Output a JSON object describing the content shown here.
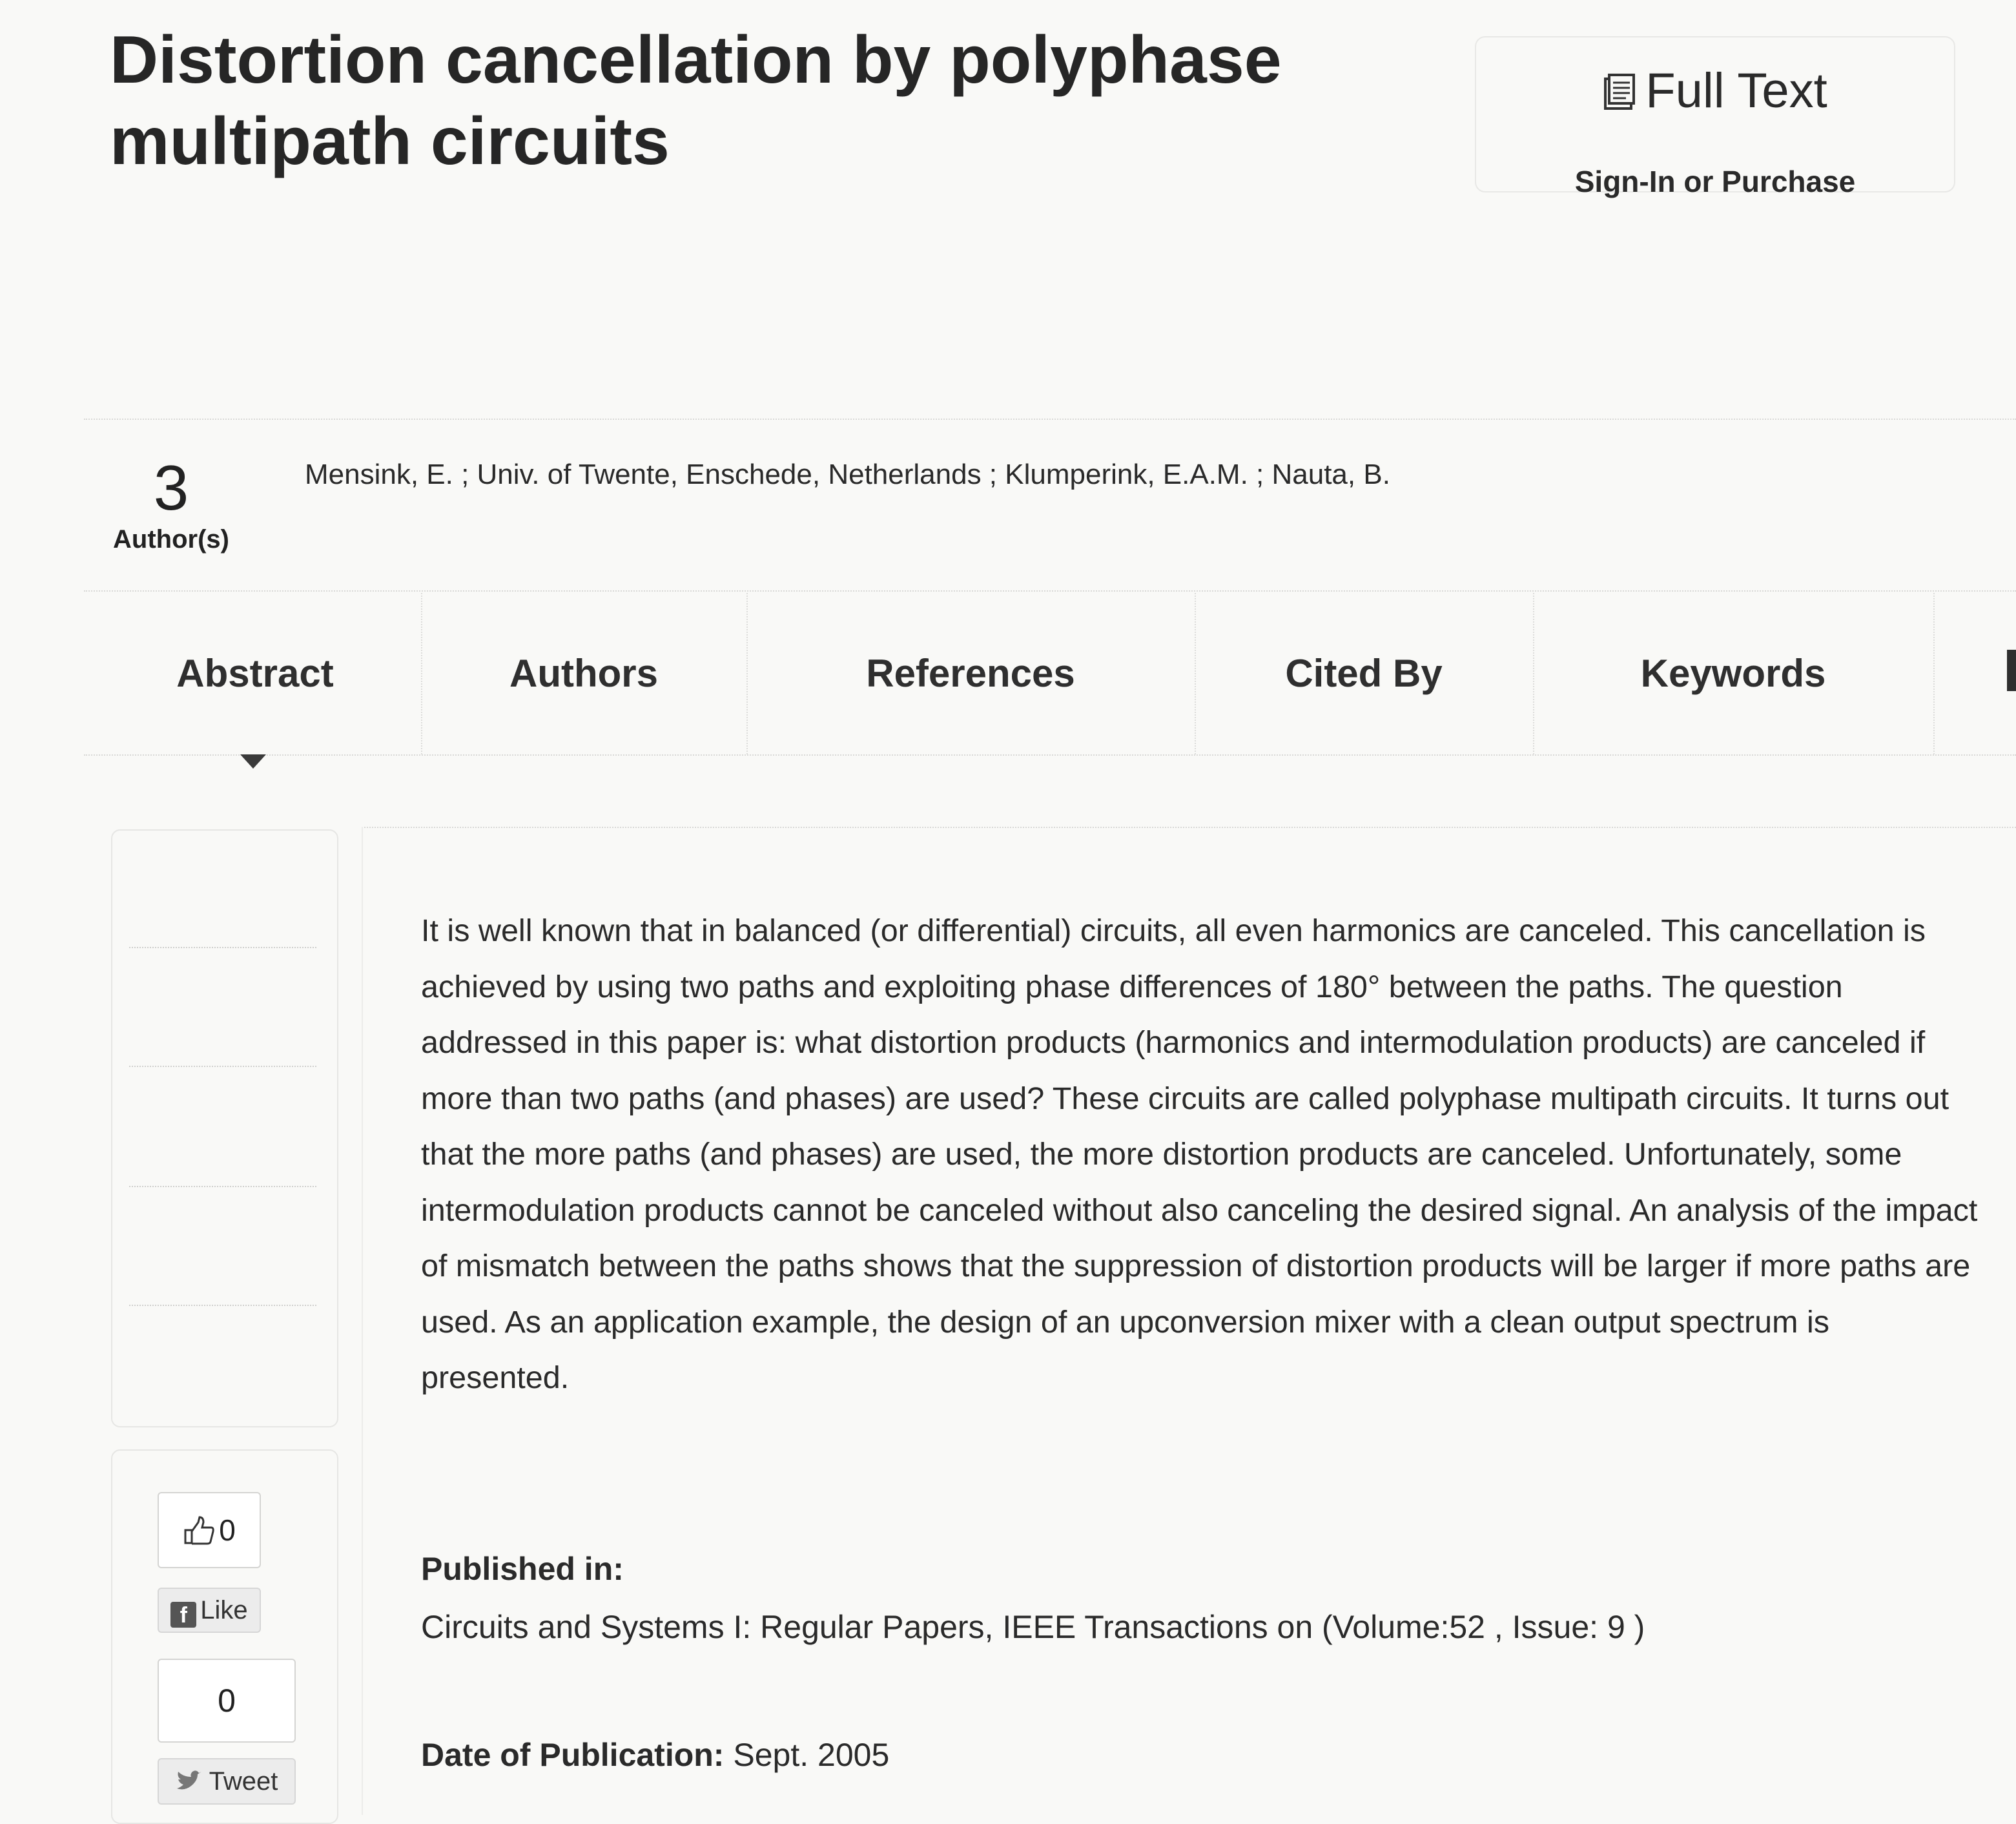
{
  "article": {
    "title": "Distortion cancellation by polyphase multipath circuits"
  },
  "full_text": {
    "label": "Full Text",
    "sub_label": "Sign-In or Purchase",
    "icon": "pdf-document-icon"
  },
  "authors_block": {
    "count": "3",
    "count_label": "Author(s)",
    "list": "Mensink, E. ; Univ. of Twente, Enschede, Netherlands ; Klumperink, E.A.M. ; Nauta, B."
  },
  "tabs": [
    {
      "label": "Abstract",
      "active": true
    },
    {
      "label": "Authors",
      "active": false
    },
    {
      "label": "References",
      "active": false
    },
    {
      "label": "Cited By",
      "active": false
    },
    {
      "label": "Keywords",
      "active": false
    }
  ],
  "abstract": {
    "text": "It is well known that in balanced (or differential) circuits, all even harmonics are canceled. This cancellation is achieved by using two paths and exploiting phase differences of 180° between the paths. The question addressed in this paper is: what distortion products (harmonics and intermodulation products) are canceled if more than two paths (and phases) are used? These circuits are called polyphase multipath circuits. It turns out that the more paths (and phases) are used, the more distortion products are canceled. Unfortunately, some intermodulation products cannot be canceled without also canceling the desired signal. An analysis of the impact of mismatch between the paths shows that the suppression of distortion products will be larger if more paths are used. As an application example, the design of an upconversion mixer with a clean output spectrum is presented."
  },
  "published_in": {
    "label": "Published in:",
    "value": "Circuits and Systems I: Regular Papers, IEEE Transactions on  (Volume:52 ,  Issue: 9 )"
  },
  "date_of_publication": {
    "label": "Date of Publication:",
    "value": "Sept. 2005"
  },
  "social": {
    "like_count": "0",
    "like_label": "Like",
    "fb_glyph": "f",
    "tweet_count": "0",
    "tweet_label": "Tweet"
  }
}
